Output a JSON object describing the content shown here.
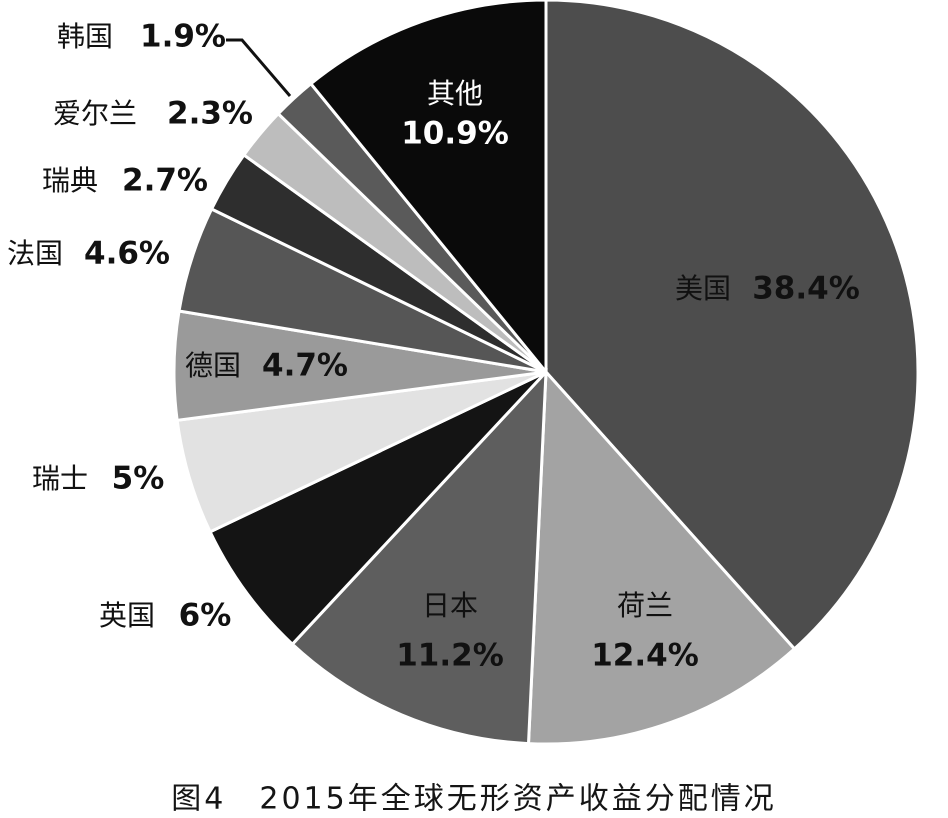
{
  "chart_data": {
    "type": "pie",
    "title": "图4　2015年全球无形资产收益分配情况",
    "categories": [
      "美国",
      "荷兰",
      "日本",
      "英国",
      "瑞士",
      "德国",
      "法国",
      "瑞典",
      "爱尔兰",
      "韩国",
      "其他"
    ],
    "values": [
      38.4,
      12.4,
      11.2,
      6,
      5,
      4.7,
      4.6,
      2.7,
      2.3,
      1.9,
      10.9
    ],
    "value_labels": [
      "38.4%",
      "12.4%",
      "11.2%",
      "6%",
      "5%",
      "4.7%",
      "4.6%",
      "2.7%",
      "2.3%",
      "1.9%",
      "10.9%"
    ],
    "colors": [
      "#4d4d4d",
      "#a3a3a3",
      "#5e5e5e",
      "#141414",
      "#e2e2e2",
      "#9a9a9a",
      "#565656",
      "#2e2e2e",
      "#bdbdbd",
      "#5a5a5a",
      "#0a0a0a"
    ]
  }
}
